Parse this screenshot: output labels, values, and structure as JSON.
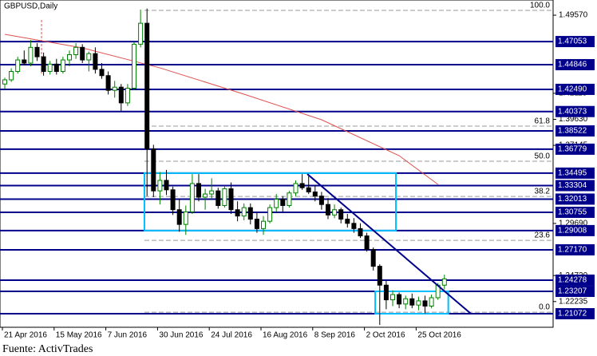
{
  "chart_data": {
    "type": "candlestick",
    "title": "GBPUSD,Daily",
    "source": "Fuente: ActivTrades",
    "ylim": [
      1.1978,
      1.5102
    ],
    "xlim": [
      0,
      72.8
    ],
    "yticks": [
      {
        "value": 1.4957,
        "label": "1.49570"
      },
      1.42115,
      {
        "value": 1.3963,
        "label": "1.39630"
      },
      1.37145,
      {
        "value": 1.2969,
        "label": "1.29690"
      },
      {
        "value": 1.2472,
        "label": "1.24720"
      },
      1.22235
    ],
    "xticks": [
      {
        "value": 0,
        "label": "21 Apr 2016"
      },
      {
        "value": 8,
        "label": "15 May 2016"
      },
      {
        "value": 16,
        "label": "7 Jun 2016"
      },
      {
        "value": 24,
        "label": "30 Jun 2016"
      },
      {
        "value": 32,
        "label": "24 Jul 2016"
      },
      {
        "value": 40,
        "label": "16 Aug 2016"
      },
      {
        "value": 48,
        "label": "8 Sep 2016"
      },
      {
        "value": 56,
        "label": "2 Oct 2016"
      },
      {
        "value": 64,
        "label": "25 Oct 2016"
      }
    ],
    "up_color": "#008000",
    "down_color": "#000000",
    "candles": [
      [
        1.43,
        1.436,
        1.425,
        1.434
      ],
      [
        1.434,
        1.445,
        1.432,
        1.442
      ],
      [
        1.442,
        1.456,
        1.44,
        1.453
      ],
      [
        1.453,
        1.462,
        1.448,
        1.45
      ],
      [
        1.45,
        1.472,
        1.447,
        1.465
      ],
      [
        1.465,
        1.469,
        1.452,
        1.456
      ],
      [
        1.456,
        1.46,
        1.438,
        1.442
      ],
      [
        1.442,
        1.452,
        1.439,
        1.449
      ],
      [
        1.449,
        1.454,
        1.439,
        1.442
      ],
      [
        1.442,
        1.456,
        1.44,
        1.453
      ],
      [
        1.453,
        1.462,
        1.447,
        1.458
      ],
      [
        1.458,
        1.469,
        1.454,
        1.465
      ],
      [
        1.465,
        1.468,
        1.45,
        1.453
      ],
      [
        1.453,
        1.461,
        1.442,
        1.459
      ],
      [
        1.459,
        1.465,
        1.44,
        1.444
      ],
      [
        1.444,
        1.45,
        1.435,
        1.438
      ],
      [
        1.438,
        1.442,
        1.42,
        1.424
      ],
      [
        1.424,
        1.433,
        1.417,
        1.427
      ],
      [
        1.427,
        1.43,
        1.404,
        1.412
      ],
      [
        1.412,
        1.43,
        1.409,
        1.426
      ],
      [
        1.426,
        1.47,
        1.424,
        1.468
      ],
      [
        1.468,
        1.501,
        1.465,
        1.488
      ],
      [
        1.488,
        1.502,
        1.323,
        1.368
      ],
      [
        1.368,
        1.372,
        1.322,
        1.328
      ],
      [
        1.328,
        1.346,
        1.315,
        1.338
      ],
      [
        1.338,
        1.348,
        1.324,
        1.329
      ],
      [
        1.329,
        1.332,
        1.305,
        1.31
      ],
      [
        1.31,
        1.32,
        1.289,
        1.296
      ],
      [
        1.296,
        1.314,
        1.286,
        1.308
      ],
      [
        1.308,
        1.344,
        1.306,
        1.335
      ],
      [
        1.335,
        1.344,
        1.318,
        1.322
      ],
      [
        1.322,
        1.33,
        1.31,
        1.325
      ],
      [
        1.325,
        1.34,
        1.32,
        1.328
      ],
      [
        1.328,
        1.331,
        1.311,
        1.314
      ],
      [
        1.314,
        1.333,
        1.312,
        1.33
      ],
      [
        1.33,
        1.336,
        1.306,
        1.31
      ],
      [
        1.31,
        1.318,
        1.299,
        1.304
      ],
      [
        1.304,
        1.316,
        1.3,
        1.312
      ],
      [
        1.312,
        1.316,
        1.296,
        1.301
      ],
      [
        1.301,
        1.308,
        1.288,
        1.292
      ],
      [
        1.292,
        1.304,
        1.286,
        1.299
      ],
      [
        1.299,
        1.315,
        1.297,
        1.312
      ],
      [
        1.312,
        1.325,
        1.308,
        1.32
      ],
      [
        1.32,
        1.323,
        1.308,
        1.314
      ],
      [
        1.314,
        1.328,
        1.312,
        1.326
      ],
      [
        1.326,
        1.338,
        1.323,
        1.335
      ],
      [
        1.335,
        1.344,
        1.329,
        1.331
      ],
      [
        1.331,
        1.342,
        1.325,
        1.327
      ],
      [
        1.327,
        1.333,
        1.318,
        1.323
      ],
      [
        1.323,
        1.327,
        1.31,
        1.315
      ],
      [
        1.315,
        1.321,
        1.301,
        1.305
      ],
      [
        1.305,
        1.315,
        1.302,
        1.31
      ],
      [
        1.31,
        1.312,
        1.297,
        1.301
      ],
      [
        1.301,
        1.306,
        1.293,
        1.297
      ],
      [
        1.297,
        1.302,
        1.288,
        1.292
      ],
      [
        1.292,
        1.297,
        1.283,
        1.285
      ],
      [
        1.285,
        1.288,
        1.27,
        1.272
      ],
      [
        1.272,
        1.274,
        1.252,
        1.256
      ],
      [
        1.256,
        1.258,
        1.2,
        1.238
      ],
      [
        1.238,
        1.242,
        1.215,
        1.224
      ],
      [
        1.224,
        1.233,
        1.218,
        1.229
      ],
      [
        1.229,
        1.231,
        1.216,
        1.22
      ],
      [
        1.22,
        1.228,
        1.215,
        1.225
      ],
      [
        1.225,
        1.23,
        1.216,
        1.219
      ],
      [
        1.219,
        1.227,
        1.214,
        1.223
      ],
      [
        1.223,
        1.228,
        1.211,
        1.218
      ],
      [
        1.218,
        1.229,
        1.216,
        1.226
      ],
      [
        1.226,
        1.24,
        1.224,
        1.238
      ],
      [
        1.238,
        1.248,
        1.234,
        1.244
      ]
    ],
    "moving_average": {
      "color": "#e05050",
      "x": [
        0,
        12,
        24,
        37,
        49,
        61,
        67
      ],
      "values": [
        1.4774,
        1.4645,
        1.4454,
        1.4203,
        1.3959,
        1.3616,
        1.3342
      ]
    },
    "levels_color": "#00008b",
    "levels": [
      1.47053,
      1.44846,
      {
        "value": 1.4249,
        "label": "1.42490"
      },
      1.40373,
      1.38522,
      1.36779,
      1.34495,
      1.33304,
      1.32013,
      1.30755,
      1.29008,
      {
        "value": 1.2717,
        "label": "1.27170"
      },
      1.24278,
      1.23207,
      1.21072
    ],
    "fib_start": 21.6,
    "fib_levels": [
      {
        "value": 1.5003,
        "label": "100.0"
      },
      {
        "value": 1.3898,
        "label": "61.8"
      },
      {
        "value": 1.3563,
        "label": "50.0"
      },
      {
        "value": 1.3227,
        "label": "38.2"
      },
      {
        "value": 1.2808,
        "label": "23.6"
      },
      {
        "value": 1.2122,
        "label": "0.0"
      }
    ],
    "boxes_color": "#00bfff",
    "boxes": [
      {
        "x": [
          21.6,
          60.5
        ],
        "y": [
          1.34495,
          1.29008
        ]
      },
      {
        "x": [
          57.3,
          68.6
        ],
        "y": [
          1.23207,
          1.21072
        ]
      }
    ],
    "trend_line": {
      "x": [
        46.8,
        72.1
      ],
      "y": [
        1.34405,
        1.21072
      ]
    }
  }
}
